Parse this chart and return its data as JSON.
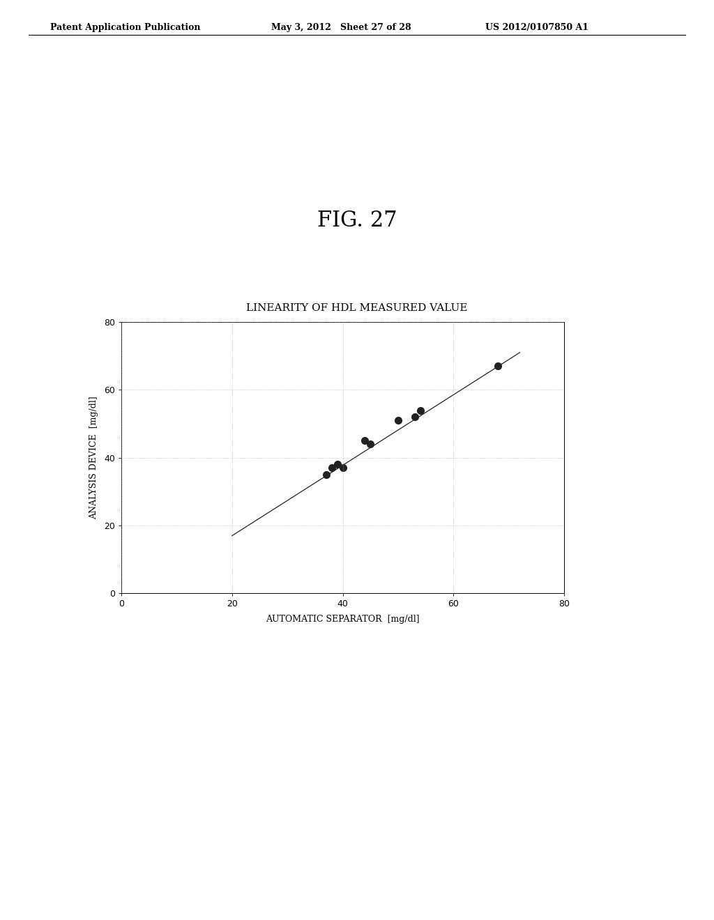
{
  "fig_title": "FIG. 27",
  "chart_title": "LINEARITY OF HDL MEASURED VALUE",
  "xlabel": "AUTOMATIC SEPARATOR  [mg/dl]",
  "ylabel": "ANALYSIS DEVICE  [mg/dl]",
  "xlim": [
    0,
    80
  ],
  "ylim": [
    0,
    80
  ],
  "xticks": [
    0,
    20,
    40,
    60,
    80
  ],
  "yticks": [
    0,
    20,
    40,
    60,
    80
  ],
  "scatter_x": [
    37,
    38,
    39,
    40,
    44,
    45,
    50,
    53,
    54,
    68
  ],
  "scatter_y": [
    35,
    37,
    38,
    37,
    45,
    44,
    51,
    52,
    54,
    67
  ],
  "line_x": [
    20,
    72
  ],
  "line_y": [
    17,
    71
  ],
  "scatter_color": "#222222",
  "line_color": "#222222",
  "marker_size": 7,
  "header_left": "Patent Application Publication",
  "header_mid": "May 3, 2012   Sheet 27 of 28",
  "header_right": "US 2012/0107850 A1",
  "background_color": "#ffffff",
  "plot_bg_color": "#ffffff",
  "fig_title_fontsize": 22,
  "chart_title_fontsize": 11,
  "axis_label_fontsize": 9,
  "tick_fontsize": 9,
  "header_fontsize": 9
}
